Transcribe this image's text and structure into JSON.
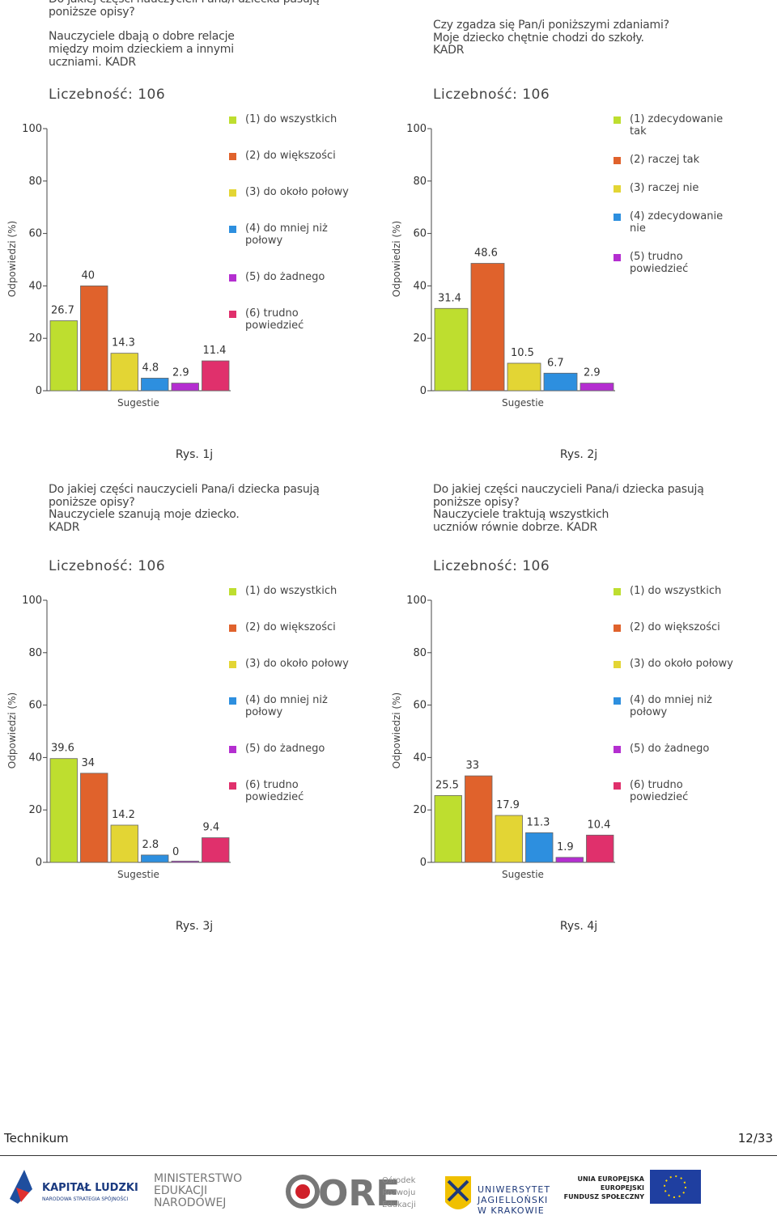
{
  "chart_data": [
    {
      "type": "bar",
      "title": [
        "Do jakiej części nauczycieli Pana/i dziecka pasują",
        "poniższe opisy?"
      ],
      "statement": [
        "Nauczyciele dbają o dobre relacje",
        "między moim dzieckiem a innymi",
        "uczniami.  KADR"
      ],
      "subtitle": "Liczebność: 106",
      "ylabel": "Odpowiedzi (%)",
      "xlabel": "Sugestie",
      "caption": "Rys. 1j",
      "categories": [
        "(1) do wszystkich",
        "(2) do większości",
        "(3) do około połowy",
        "(4) do mniej niż połowy",
        "(5) do żadnego",
        "(6) trudno powiedzieć"
      ],
      "values": [
        26.7,
        40,
        14.3,
        4.8,
        2.9,
        11.4
      ],
      "colors": [
        "#bede2f",
        "#e0622c",
        "#e3d534",
        "#2d8fdf",
        "#b42ed0",
        "#e0306c"
      ],
      "ylim": [
        0,
        100
      ],
      "yticks": [
        0,
        20,
        40,
        60,
        80,
        100
      ]
    },
    {
      "type": "bar",
      "title": [
        "Czy zgadza się Pan/i poniższymi zdaniami?"
      ],
      "statement": [
        "Moje dziecko chętnie chodzi do szkoły.",
        "KADR"
      ],
      "subtitle": "Liczebność: 106",
      "ylabel": "Odpowiedzi (%)",
      "xlabel": "Sugestie",
      "caption": "Rys. 2j",
      "categories": [
        "(1) zdecydowanie tak",
        "(2) raczej tak",
        "(3) raczej nie",
        "(4) zdecydowanie nie",
        "(5) trudno powiedzieć"
      ],
      "values": [
        31.4,
        48.6,
        10.5,
        6.7,
        2.9
      ],
      "colors": [
        "#bede2f",
        "#e0622c",
        "#e3d534",
        "#2d8fdf",
        "#b42ed0"
      ],
      "ylim": [
        0,
        100
      ],
      "yticks": [
        0,
        20,
        40,
        60,
        80,
        100
      ]
    },
    {
      "type": "bar",
      "title": [
        "Do jakiej części nauczycieli Pana/i dziecka pasują",
        "poniższe opisy?"
      ],
      "statement": [
        "Nauczyciele szanują moje dziecko.",
        "KADR"
      ],
      "subtitle": "Liczebność: 106",
      "ylabel": "Odpowiedzi (%)",
      "xlabel": "Sugestie",
      "caption": "Rys. 3j",
      "categories": [
        "(1) do wszystkich",
        "(2) do większości",
        "(3) do około połowy",
        "(4) do mniej niż połowy",
        "(5) do żadnego",
        "(6) trudno powiedzieć"
      ],
      "values": [
        39.6,
        34,
        14.2,
        2.8,
        0,
        9.4
      ],
      "colors": [
        "#bede2f",
        "#e0622c",
        "#e3d534",
        "#2d8fdf",
        "#b42ed0",
        "#e0306c"
      ],
      "ylim": [
        0,
        100
      ],
      "yticks": [
        0,
        20,
        40,
        60,
        80,
        100
      ]
    },
    {
      "type": "bar",
      "title": [
        "Do jakiej części nauczycieli Pana/i dziecka pasują",
        "poniższe opisy?"
      ],
      "statement": [
        "Nauczyciele traktują wszystkich",
        "uczniów równie dobrze.  KADR"
      ],
      "subtitle": "Liczebność: 106",
      "ylabel": "Odpowiedzi (%)",
      "xlabel": "Sugestie",
      "caption": "Rys. 4j",
      "categories": [
        "(1) do wszystkich",
        "(2) do większości",
        "(3) do około połowy",
        "(4) do mniej niż połowy",
        "(5) do żadnego",
        "(6) trudno powiedzieć"
      ],
      "values": [
        25.5,
        33,
        17.9,
        11.3,
        1.9,
        10.4
      ],
      "colors": [
        "#bede2f",
        "#e0622c",
        "#e3d534",
        "#2d8fdf",
        "#b42ed0",
        "#e0306c"
      ],
      "ylim": [
        0,
        100
      ],
      "yticks": [
        0,
        20,
        40,
        60,
        80,
        100
      ]
    }
  ],
  "footer": {
    "left": "Technikum",
    "right": "12/33"
  },
  "logos": {
    "kl": "KAPITAŁ LUDZKI",
    "kl_sub": "NARODOWA STRATEGIA SPÓJNOŚCI",
    "men": [
      "MINISTERSTWO",
      "EDUKACJI",
      "NARODOWEJ"
    ],
    "ore": "ORE",
    "ore_sub": [
      "Ośrodek",
      "Rozwoju",
      "Edukacji"
    ],
    "uj": [
      "UNIWERSYTET",
      "JAGIELLOŃSKI",
      "W KRAKOWIE"
    ],
    "ue": [
      "UNIA EUROPEJSKA",
      "EUROPEJSKI",
      "FUNDUSZ SPOŁECZNY"
    ]
  }
}
